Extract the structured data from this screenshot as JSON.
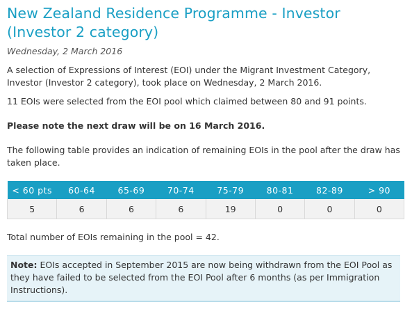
{
  "header": {
    "title": "New Zealand Residence Programme - Investor (Investor 2 category)",
    "date": "Wednesday, 2 March 2016"
  },
  "content": {
    "intro": "A selection of Expressions of Interest (EOI) under the Migrant Investment Category, Investor (Investor 2 category), took place on Wednesday, 2 March 2016.",
    "selected": "11 EOIs were selected from the EOI pool which claimed between 80 and 91 points.",
    "next_draw": "Please note the next draw will be on 16 March 2016.",
    "table_intro": "The following table provides an indication of remaining EOIs in the pool after the draw has taken place.",
    "total": "Total number of EOIs remaining in the pool = 42."
  },
  "table": {
    "headers": [
      "< 60 pts",
      "60-64",
      "65-69",
      "70-74",
      "75-79",
      "80-81",
      "82-89",
      "> 90"
    ],
    "values": [
      "5",
      "6",
      "6",
      "6",
      "19",
      "0",
      "0",
      "0"
    ]
  },
  "note": {
    "label": "Note:",
    "text": "EOIs accepted in September 2015 are now being withdrawn from the EOI Pool as they have failed to be selected from the EOI Pool after 6 months (as per Immigration Instructions)."
  },
  "colors": {
    "accent": "#1a9fc4",
    "note_background": "#e6f3f8"
  }
}
